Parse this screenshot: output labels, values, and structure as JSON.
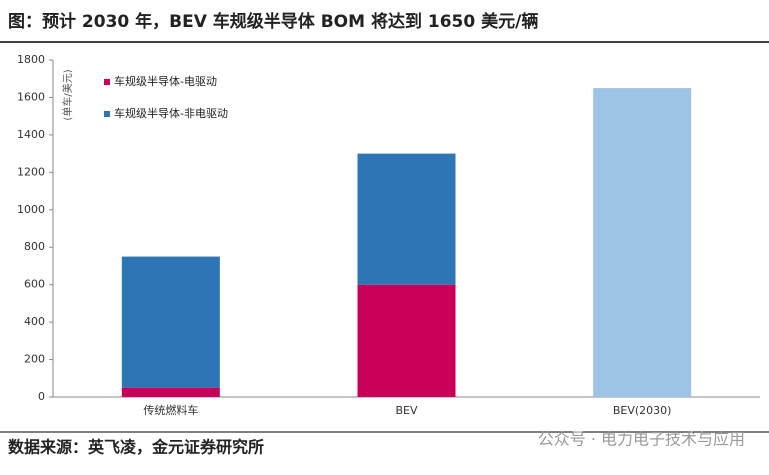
{
  "chart_data": {
    "type": "stacked_bar",
    "title": "图：预计 2030 年，BEV 车规级半导体 BOM 将达到 1650 美元/辆",
    "y_label": "(单车/美元)",
    "categories": [
      "传统燃料车",
      "BEV",
      "BEV(2030)"
    ],
    "series": [
      {
        "name": "车规级半导体-电驱动",
        "color": "#C8005A",
        "values": [
          50,
          600,
          null
        ]
      },
      {
        "name": "车规级半导体-非电驱动",
        "color": "#2E75B6",
        "values": [
          700,
          700,
          1650
        ],
        "point_colors": [
          "#2E75B6",
          "#2E75B6",
          "#9DC3E6"
        ]
      }
    ],
    "ylim": [
      0,
      1800
    ],
    "yticks": [
      0,
      200,
      400,
      600,
      800,
      1000,
      1200,
      1400,
      1600,
      1800
    ],
    "source": "数据来源：英飞凌，金元证券研究所",
    "watermark": "公众号 · 电力电子技术与应用"
  }
}
